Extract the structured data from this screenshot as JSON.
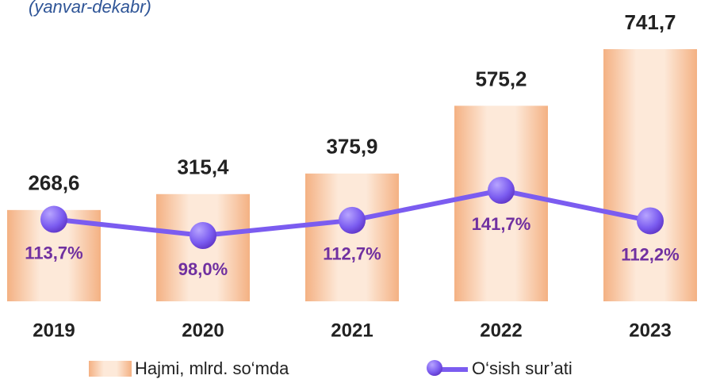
{
  "chart_data": {
    "type": "bar-line",
    "subtitle": "(yanvar-dekabr)",
    "categories": [
      "2019",
      "2020",
      "2021",
      "2022",
      "2023"
    ],
    "series": [
      {
        "name": "Hajmi, mlrd. so‘mda",
        "type": "bar",
        "color": "#f4b183",
        "values": [
          268.6,
          315.4,
          375.9,
          575.2,
          741.7
        ],
        "value_labels": [
          "268,6",
          "315,4",
          "375,9",
          "575,2",
          "741,7"
        ]
      },
      {
        "name": "O‘sish sur’ati",
        "type": "line",
        "axis": "y2",
        "color": "#7b5cf0",
        "values": [
          113.7,
          98.0,
          112.7,
          141.7,
          112.2
        ],
        "value_labels": [
          "113,7%",
          "98,0%",
          "112,7%",
          "141,7%",
          "112,2%"
        ]
      }
    ]
  }
}
